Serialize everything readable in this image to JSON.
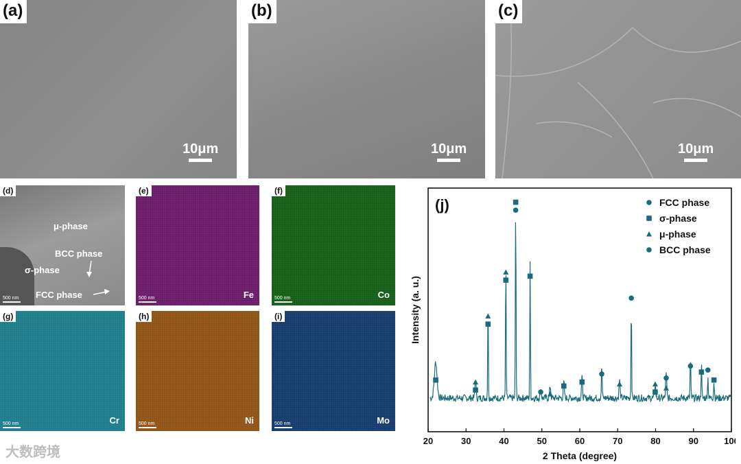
{
  "panels_top": [
    {
      "label": "(a)",
      "scale": "10μm"
    },
    {
      "label": "(b)",
      "scale": "10μm"
    },
    {
      "label": "(c)",
      "scale": "10μm"
    }
  ],
  "panel_d": {
    "label": "(d)",
    "scale": "500 nm",
    "annotations": {
      "mu": "μ-phase",
      "bcc": "BCC phase",
      "sigma": "σ-phase",
      "fcc": "FCC phase"
    }
  },
  "maps": [
    {
      "label": "(e)",
      "element": "Fe",
      "scale": "500 nm",
      "color": "#6a1a68"
    },
    {
      "label": "(f)",
      "element": "Co",
      "scale": "500 nm",
      "color": "#155e18"
    },
    {
      "label": "(g)",
      "element": "Cr",
      "scale": "500 nm",
      "color": "#1d7d8a"
    },
    {
      "label": "(h)",
      "element": "Ni",
      "scale": "500 nm",
      "color": "#8f5316"
    },
    {
      "label": "(i)",
      "element": "Mo",
      "scale": "500 nm",
      "color": "#153a6b"
    }
  ],
  "watermark": "大数跨境",
  "chart_data": {
    "type": "line",
    "panel_label": "(j)",
    "xlabel": "2 Theta (degree)",
    "ylabel": "Intensity (a. u.)",
    "xlim": [
      20,
      100
    ],
    "xticks": [
      20,
      30,
      40,
      50,
      60,
      70,
      80,
      90,
      100
    ],
    "color": "#1a6c7c",
    "baseline": 0.12,
    "peaks": [
      {
        "x": 22,
        "y": 0.18,
        "w": 0.5
      },
      {
        "x": 32.5,
        "y": 0.1,
        "w": 0.2
      },
      {
        "x": 35.8,
        "y": 0.47,
        "w": 0.12
      },
      {
        "x": 40.5,
        "y": 0.68,
        "w": 0.12
      },
      {
        "x": 43.1,
        "y": 1.0,
        "w": 0.12
      },
      {
        "x": 46.9,
        "y": 0.67,
        "w": 0.12
      },
      {
        "x": 49.7,
        "y": 0.05,
        "w": 0.2
      },
      {
        "x": 52.2,
        "y": 0.06,
        "w": 0.2
      },
      {
        "x": 55.8,
        "y": 0.08,
        "w": 0.2
      },
      {
        "x": 60.6,
        "y": 0.1,
        "w": 0.2
      },
      {
        "x": 65.8,
        "y": 0.16,
        "w": 0.15
      },
      {
        "x": 70.5,
        "y": 0.09,
        "w": 0.2
      },
      {
        "x": 73.6,
        "y": 0.48,
        "w": 0.12
      },
      {
        "x": 79.9,
        "y": 0.07,
        "w": 0.2
      },
      {
        "x": 82.8,
        "y": 0.12,
        "w": 0.2
      },
      {
        "x": 89.2,
        "y": 0.21,
        "w": 0.13
      },
      {
        "x": 92.1,
        "y": 0.17,
        "w": 0.13
      },
      {
        "x": 93.8,
        "y": 0.1,
        "w": 0.15
      },
      {
        "x": 95.4,
        "y": 0.08,
        "w": 0.15
      }
    ],
    "markers": [
      {
        "x": 22,
        "y": 0.21,
        "shape": "square"
      },
      {
        "x": 32.5,
        "y": 0.2,
        "shape": "triangle"
      },
      {
        "x": 32.5,
        "y": 0.16,
        "shape": "square"
      },
      {
        "x": 35.8,
        "y": 0.53,
        "shape": "triangle"
      },
      {
        "x": 35.8,
        "y": 0.49,
        "shape": "square"
      },
      {
        "x": 40.5,
        "y": 0.75,
        "shape": "triangle"
      },
      {
        "x": 40.5,
        "y": 0.71,
        "shape": "square"
      },
      {
        "x": 43.1,
        "y": 1.1,
        "shape": "square"
      },
      {
        "x": 43.1,
        "y": 1.06,
        "shape": "circle"
      },
      {
        "x": 46.9,
        "y": 0.73,
        "shape": "square"
      },
      {
        "x": 49.7,
        "y": 0.15,
        "shape": "circle"
      },
      {
        "x": 52.2,
        "y": 0.14,
        "shape": "triangle"
      },
      {
        "x": 55.8,
        "y": 0.18,
        "shape": "square"
      },
      {
        "x": 60.6,
        "y": 0.2,
        "shape": "square"
      },
      {
        "x": 65.8,
        "y": 0.24,
        "shape": "circle"
      },
      {
        "x": 70.5,
        "y": 0.19,
        "shape": "triangle"
      },
      {
        "x": 73.6,
        "y": 0.62,
        "shape": "circle"
      },
      {
        "x": 79.9,
        "y": 0.19,
        "shape": "triangle"
      },
      {
        "x": 79.9,
        "y": 0.15,
        "shape": "square"
      },
      {
        "x": 82.8,
        "y": 0.22,
        "shape": "circle"
      },
      {
        "x": 82.8,
        "y": 0.17,
        "shape": "triangle"
      },
      {
        "x": 89.2,
        "y": 0.28,
        "shape": "circle"
      },
      {
        "x": 92.1,
        "y": 0.25,
        "shape": "square"
      },
      {
        "x": 93.8,
        "y": 0.26,
        "shape": "circle"
      },
      {
        "x": 95.4,
        "y": 0.21,
        "shape": "square"
      }
    ],
    "legend": [
      {
        "name": "FCC phase",
        "shape": "circle"
      },
      {
        "name": "σ-phase",
        "shape": "square"
      },
      {
        "name": "μ-phase",
        "shape": "triangle"
      },
      {
        "name": "BCC phase",
        "shape": "circle"
      }
    ],
    "legend_position": "top-right"
  }
}
